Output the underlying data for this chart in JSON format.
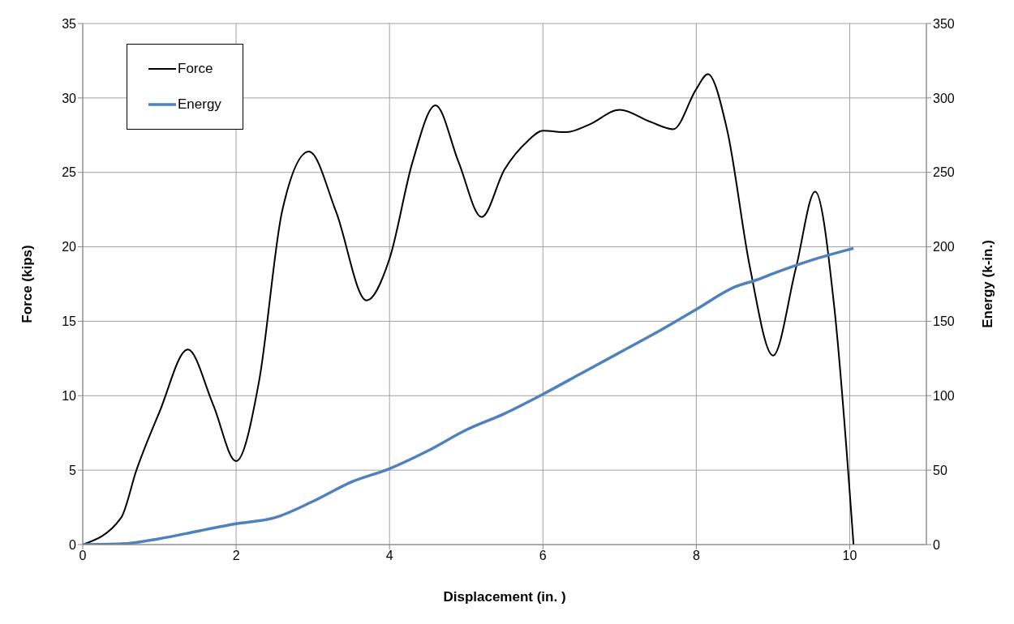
{
  "chart_data": {
    "type": "line",
    "xlabel": "Displacement (in. )",
    "ylabel": "Force (kips)",
    "y2label": "Energy (k-in.)",
    "xlim": [
      0,
      11
    ],
    "xticks": [
      0,
      2,
      4,
      6,
      8,
      10
    ],
    "ylim": [
      0,
      35
    ],
    "yticks": [
      0,
      5,
      10,
      15,
      20,
      25,
      30,
      35
    ],
    "y2lim": [
      0,
      350
    ],
    "y2ticks": [
      0,
      50,
      100,
      150,
      200,
      250,
      300,
      350
    ],
    "grid": true,
    "legend": "top left",
    "marker": "none",
    "line_style": "solid",
    "series": [
      {
        "name": "Force",
        "color": "#000000",
        "x": [
          0,
          0.5,
          0.7,
          1.0,
          1.37,
          1.7,
          2.0,
          2.3,
          2.6,
          2.95,
          3.3,
          3.7,
          4.0,
          4.3,
          4.6,
          4.9,
          5.2,
          5.5,
          5.8,
          6.0,
          6.3,
          6.6,
          7.0,
          7.4,
          7.7,
          8.0,
          8.15,
          8.4,
          8.7,
          9.0,
          9.3,
          9.55,
          9.8,
          10.05
        ],
        "values": [
          0,
          1.8,
          5,
          8.9,
          13.1,
          9.4,
          5.6,
          11,
          22.4,
          26.4,
          22.4,
          16.4,
          19.2,
          25.7,
          29.5,
          25.7,
          22,
          25.2,
          27.1,
          27.8,
          27.7,
          28.2,
          29.2,
          28.4,
          27.9,
          30.6,
          31.6,
          27.9,
          18.6,
          12.7,
          18.6,
          23.7,
          15.9,
          0
        ]
      },
      {
        "name": "Energy",
        "color": "#4f81bd",
        "axis": "y2",
        "x": [
          0,
          0.5,
          1.0,
          1.5,
          2.0,
          2.5,
          3.0,
          3.5,
          4.0,
          4.5,
          5.0,
          5.5,
          6.0,
          6.5,
          7.0,
          7.5,
          8.0,
          8.5,
          8.8,
          9.0,
          9.5,
          10.05
        ],
        "values": [
          0,
          0.5,
          4,
          9,
          14,
          18,
          29,
          42,
          51,
          63,
          77,
          88,
          101,
          115,
          129,
          143,
          158,
          173,
          178,
          182,
          191,
          199
        ]
      }
    ]
  }
}
